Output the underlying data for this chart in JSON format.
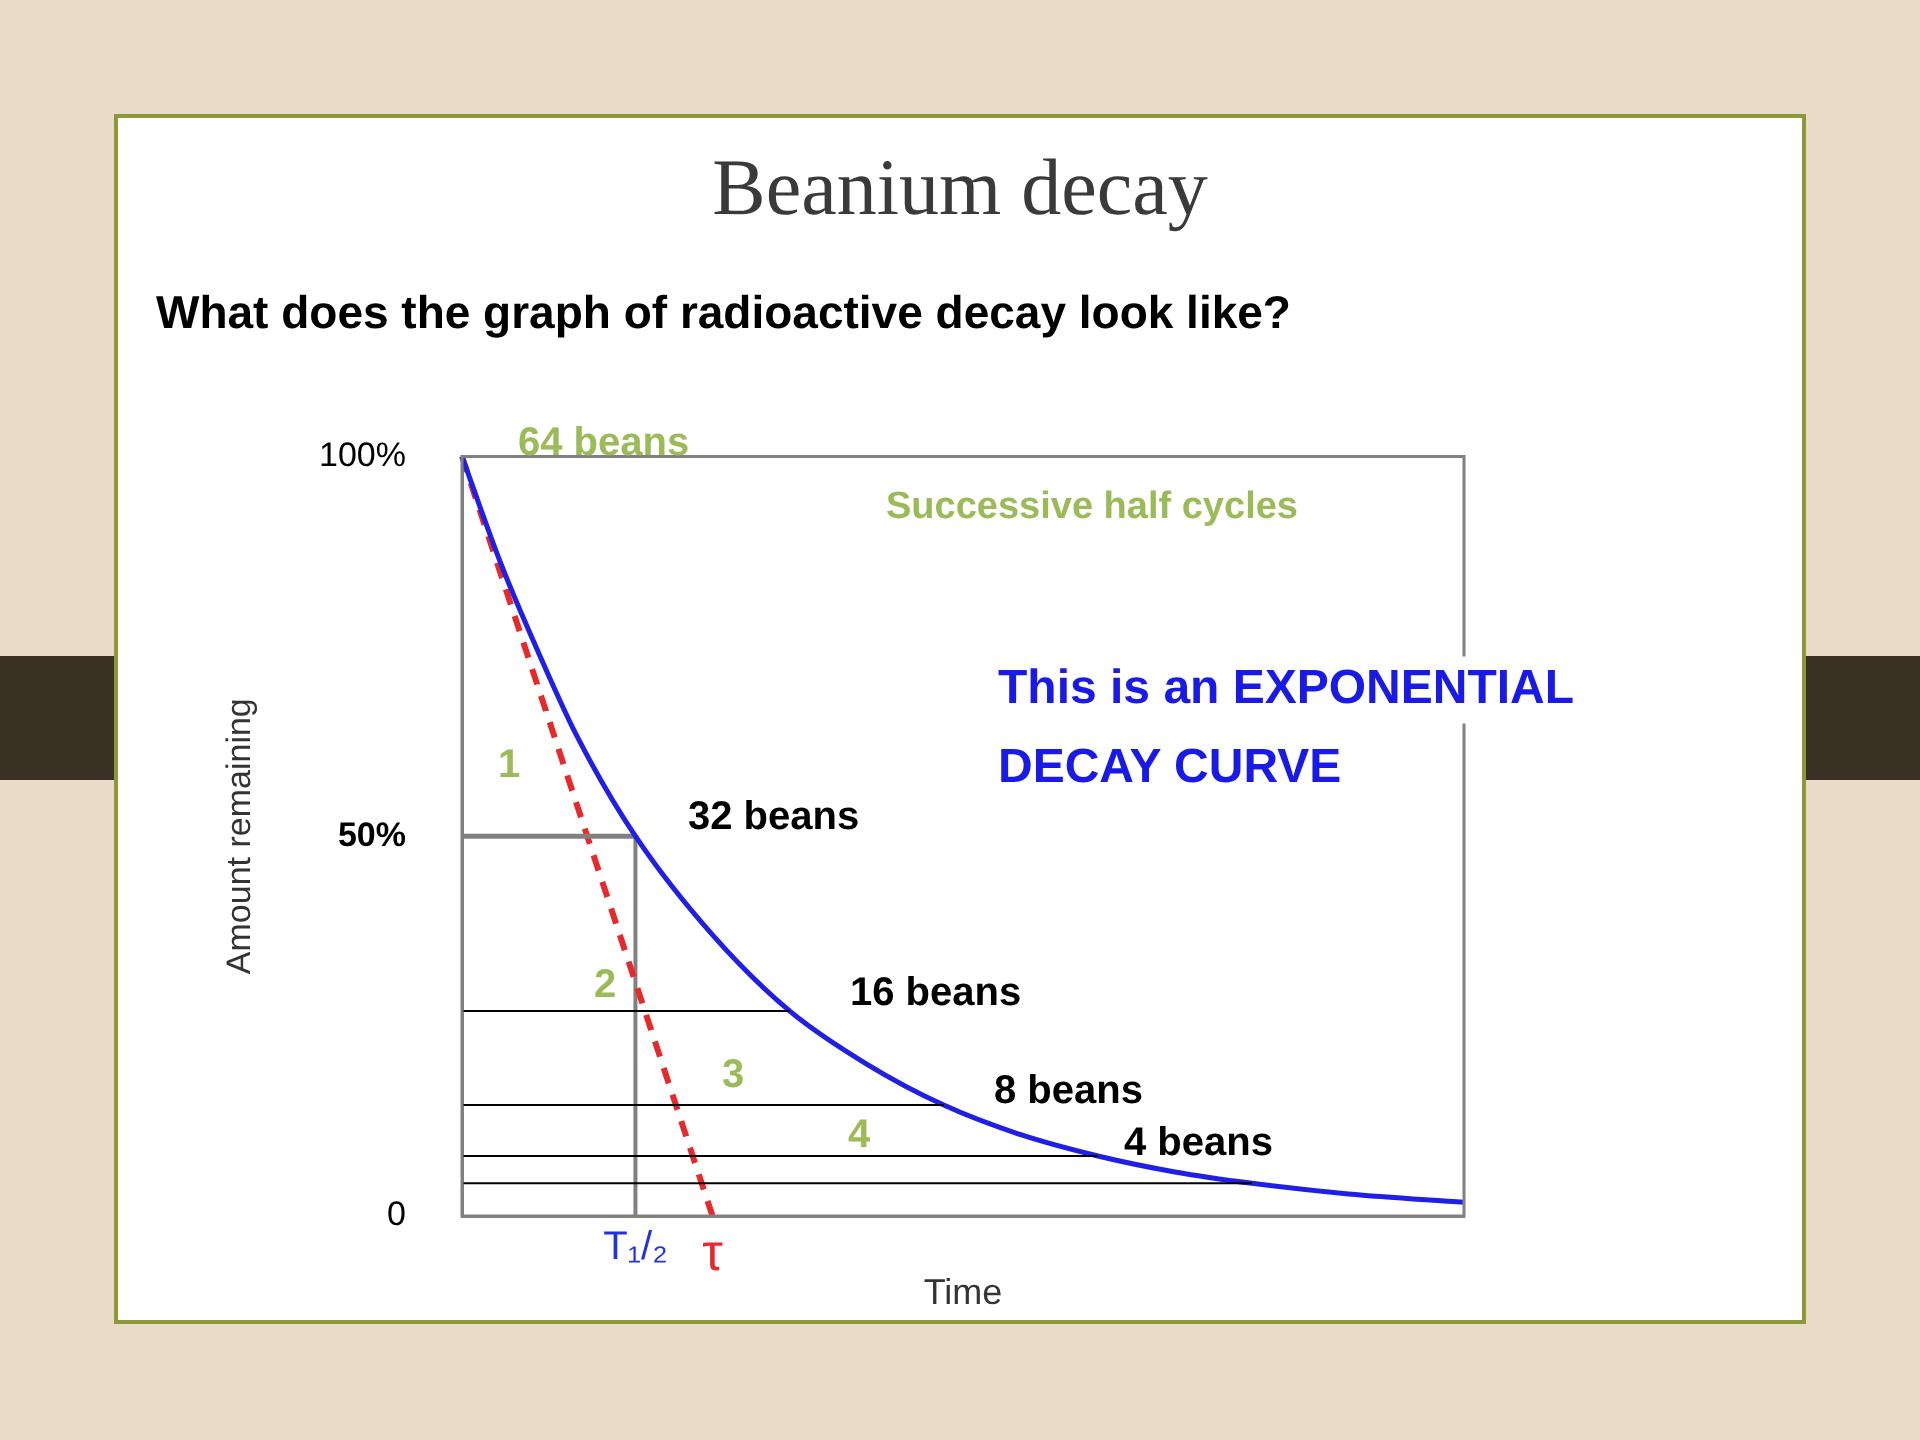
{
  "chart_data": {
    "type": "line",
    "title": "Beanium decay",
    "subtitle": "What does the graph of radioactive decay look like?",
    "xlabel": "Time",
    "ylabel": "Amount remaining",
    "categories": [
      null,
      null,
      null,
      null,
      null,
      null,
      null,
      null,
      null,
      "T₁/₂",
      null,
      null,
      null,
      "τ",
      null,
      null,
      null,
      null,
      null,
      null,
      null,
      null,
      null,
      null,
      null,
      null,
      null,
      null,
      null,
      null,
      null,
      null,
      null,
      null,
      null,
      null,
      null,
      null,
      null,
      null,
      null,
      null,
      null,
      null,
      null,
      null,
      null,
      null,
      null,
      null,
      null,
      null,
      null
    ],
    "ylim": [
      0,
      100
    ],
    "yticks": [
      {
        "value": 0,
        "label": "0"
      },
      {
        "value": 50,
        "label": "50%"
      },
      {
        "value": 100,
        "label": "100%"
      }
    ],
    "grid": false,
    "legend": false,
    "series": [
      {
        "color": "#1f1fe6",
        "values": [
          100,
          null,
          86,
          null,
          74,
          null,
          63,
          null,
          null,
          50,
          null,
          null,
          null,
          37,
          null,
          null,
          null,
          27,
          null,
          null,
          null,
          20,
          null,
          null,
          null,
          14.6,
          null,
          null,
          null,
          10.7,
          null,
          null,
          null,
          7.9,
          null,
          null,
          null,
          5.8,
          null,
          null,
          null,
          4.3,
          null,
          null,
          null,
          null,
          2.9,
          null,
          null,
          null,
          null,
          null,
          1.8
        ]
      },
      {
        "color": "#e8292b",
        "line_style": "dashed",
        "values": [
          100,
          null,
          null,
          null,
          null,
          null,
          null,
          null,
          null,
          null,
          null,
          null,
          null,
          0,
          null,
          null,
          null,
          null,
          null,
          null,
          null,
          null,
          null,
          null,
          null,
          null,
          null,
          null,
          null,
          null,
          null,
          null,
          null,
          null,
          null,
          null,
          null,
          null,
          null,
          null,
          null,
          null,
          null,
          null,
          null,
          null,
          null,
          null,
          null,
          null,
          null,
          null,
          null
        ]
      },
      {
        "color": "#808080",
        "values": [
          50,
          null,
          null,
          null,
          null,
          null,
          null,
          null,
          null,
          50,
          null,
          null,
          null,
          null,
          null,
          null,
          null,
          null,
          null,
          null,
          null,
          null,
          null,
          null,
          null,
          null,
          null,
          null,
          null,
          null,
          null,
          null,
          null,
          null,
          null,
          null,
          null,
          null,
          null,
          null,
          null,
          null,
          null,
          null,
          null,
          null,
          null,
          null,
          null,
          null,
          null,
          null,
          null
        ]
      },
      {
        "color": "#000000",
        "values": [
          27,
          null,
          null,
          null,
          null,
          null,
          null,
          null,
          null,
          null,
          null,
          null,
          null,
          null,
          null,
          null,
          null,
          27,
          null,
          null,
          null,
          null,
          null,
          null,
          null,
          null,
          null,
          null,
          null,
          null,
          null,
          null,
          null,
          null,
          null,
          null,
          null,
          null,
          null,
          null,
          null,
          null,
          null,
          null,
          null,
          null,
          null,
          null,
          null,
          null,
          null,
          null,
          null
        ]
      },
      {
        "color": "#000000",
        "values": [
          14.6,
          null,
          null,
          null,
          null,
          null,
          null,
          null,
          null,
          null,
          null,
          null,
          null,
          null,
          null,
          null,
          null,
          null,
          null,
          null,
          null,
          null,
          null,
          null,
          null,
          14.6,
          null,
          null,
          null,
          null,
          null,
          null,
          null,
          null,
          null,
          null,
          null,
          null,
          null,
          null,
          null,
          null,
          null,
          null,
          null,
          null,
          null,
          null,
          null,
          null,
          null,
          null,
          null
        ]
      },
      {
        "color": "#000000",
        "values": [
          7.9,
          null,
          null,
          null,
          null,
          null,
          null,
          null,
          null,
          null,
          null,
          null,
          null,
          null,
          null,
          null,
          null,
          null,
          null,
          null,
          null,
          null,
          null,
          null,
          null,
          null,
          null,
          null,
          null,
          null,
          null,
          null,
          null,
          7.9,
          null,
          null,
          null,
          null,
          null,
          null,
          null,
          null,
          null,
          null,
          null,
          null,
          null,
          null,
          null,
          null,
          null,
          null,
          null
        ]
      },
      {
        "color": "#000000",
        "values": [
          4.3,
          null,
          null,
          null,
          null,
          null,
          null,
          null,
          null,
          null,
          null,
          null,
          null,
          null,
          null,
          null,
          null,
          null,
          null,
          null,
          null,
          null,
          null,
          null,
          null,
          null,
          null,
          null,
          null,
          null,
          null,
          null,
          null,
          null,
          null,
          null,
          null,
          null,
          null,
          null,
          null,
          4.3,
          null,
          null,
          null,
          null,
          null,
          null,
          null,
          null,
          null,
          null,
          null
        ]
      }
    ],
    "ref_lines": [
      {
        "axis": "x",
        "value": "T₁/₂",
        "color": "#808080"
      }
    ],
    "annotations": [
      "64 beans",
      "32 beans",
      "16 beans",
      "8 beans",
      "4 beans",
      "Successive half cycles",
      "This is an EXPONENTIAL DECAY CURVE",
      "1",
      "2",
      "3",
      "4"
    ]
  }
}
